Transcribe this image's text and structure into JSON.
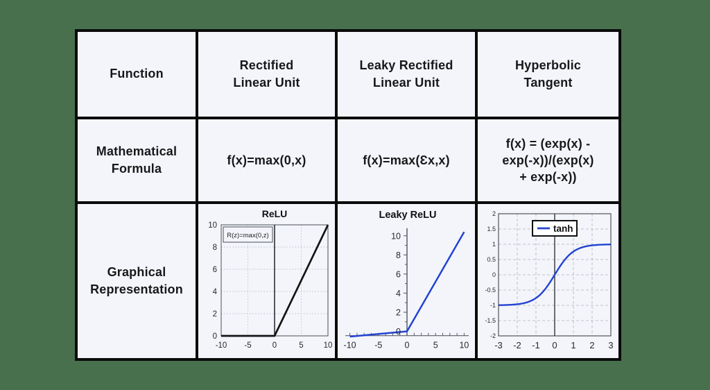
{
  "colors": {
    "page_background": "#48704d",
    "cell_background": "#f3f5fa",
    "grid_border": "#0b0b0b",
    "text": "#17181a",
    "chart_blue": "#2343d2",
    "chart_black": "#141414"
  },
  "table": {
    "headers": {
      "function": "Function",
      "relu": "Rectified\nLinear Unit",
      "leaky": "Leaky Rectified\nLinear Unit",
      "tanh": "Hyperbolic\nTangent"
    },
    "row_labels": {
      "formula": "Mathematical\nFormula",
      "graph": "Graphical\nRepresentation"
    },
    "formulas": {
      "relu": "f(x)=max(0,x)",
      "leaky": "f(x)=max(Ɛx,x)",
      "tanh": "f(x) = (exp(x) -\nexp(-x))/(exp(x)\n+ exp(-x))"
    }
  },
  "chart_data": [
    {
      "id": "relu",
      "type": "line",
      "title": "ReLU",
      "annotation": "R(z)=max(0,z)",
      "xlabel": "",
      "ylabel": "",
      "xlim": [
        -10,
        10
      ],
      "ylim": [
        0,
        10
      ],
      "xticks": [
        -10,
        -5,
        0,
        5,
        10
      ],
      "yticks": [
        0,
        2,
        4,
        6,
        8,
        10
      ],
      "grid": "dotted",
      "box": true,
      "zero_vline": true,
      "series": [
        {
          "name": "ReLU",
          "color": "#141414",
          "points": [
            [
              -10,
              0
            ],
            [
              0,
              0
            ],
            [
              10,
              10
            ]
          ]
        }
      ]
    },
    {
      "id": "leaky_relu",
      "type": "line",
      "title": "Leaky ReLU",
      "xlabel": "",
      "ylabel": "",
      "xlim": [
        -10.8,
        10.8
      ],
      "ylim": [
        -1.2,
        11
      ],
      "xticks": [
        -10,
        -5,
        0,
        5,
        10
      ],
      "yticks": [
        0,
        2,
        4,
        6,
        8,
        10
      ],
      "x_minor_step": 1.25,
      "y_minor_ticks": [
        1,
        3,
        5,
        7,
        9
      ],
      "axis_y": -0.45,
      "grid": "none",
      "box": false,
      "axes_style": "cross",
      "series": [
        {
          "name": "Leaky ReLU",
          "color": "#2343d2",
          "points": [
            [
              -10,
              -0.55
            ],
            [
              0,
              0
            ],
            [
              10,
              10.4
            ]
          ]
        }
      ]
    },
    {
      "id": "tanh",
      "type": "line",
      "title": "",
      "legend": "tanh",
      "legend_position": "top-center",
      "xlabel": "",
      "ylabel": "",
      "xlim": [
        -3,
        3
      ],
      "ylim": [
        -2,
        2
      ],
      "xticks": [
        -3,
        -2,
        -1,
        0,
        1,
        2,
        3
      ],
      "yticks": [
        -2,
        -1.5,
        -1,
        -0.5,
        0,
        0.5,
        1,
        1.5,
        2
      ],
      "grid": "dashed",
      "box": true,
      "zero_vline": true,
      "series": [
        {
          "name": "tanh",
          "color": "#2343d2",
          "fn": "tanh"
        }
      ]
    }
  ]
}
